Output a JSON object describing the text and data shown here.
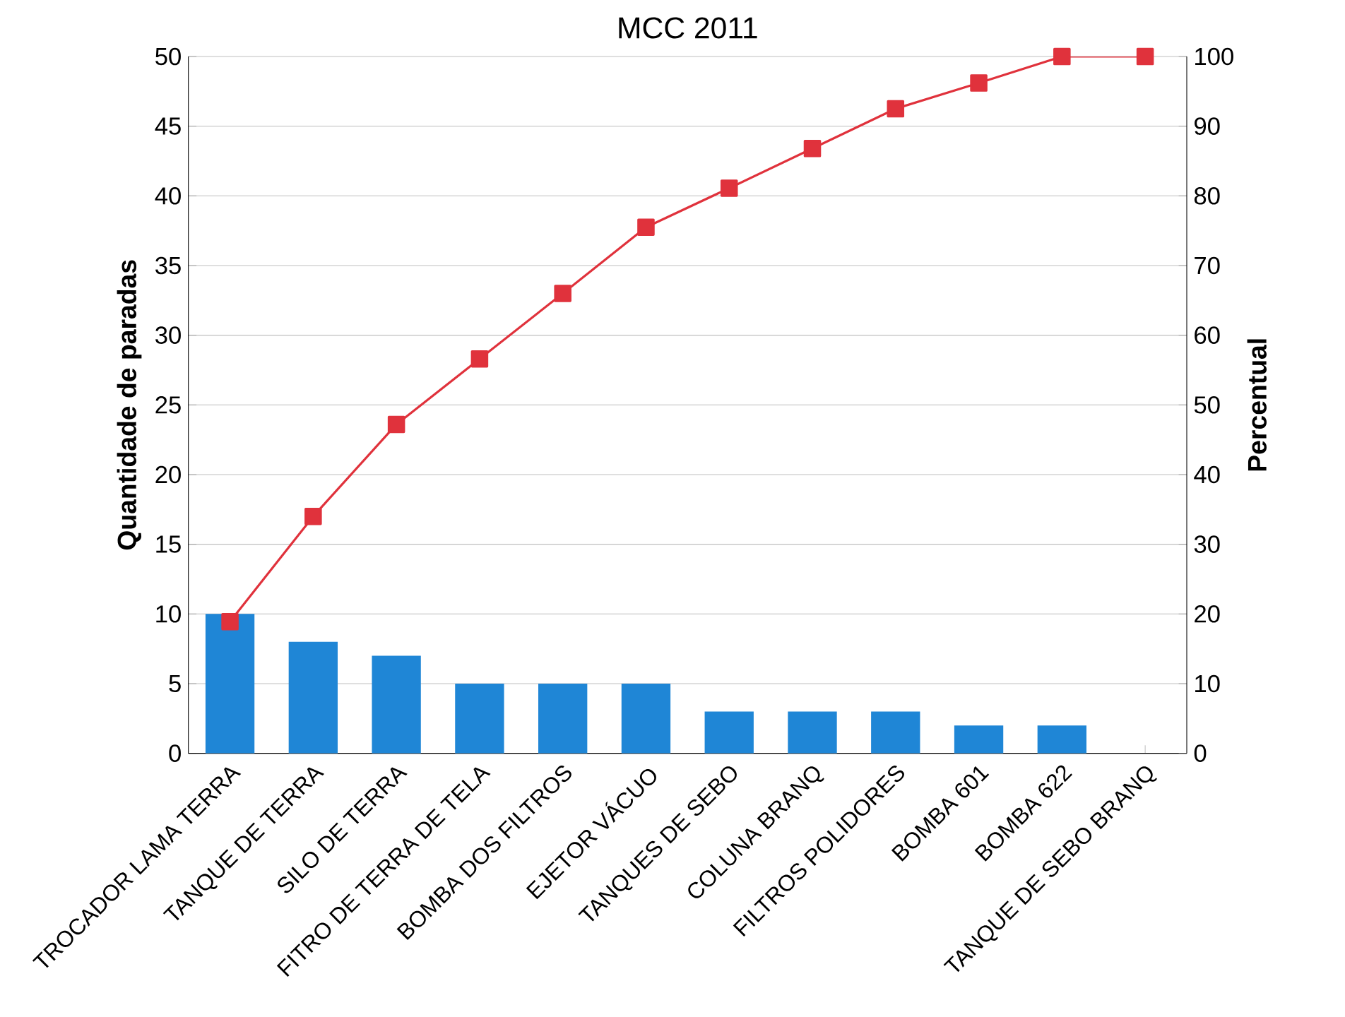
{
  "chart_data": {
    "type": "bar",
    "title": "MCC 2011",
    "ylabel": "Quantidade de paradas",
    "y2label": "Percentual",
    "categories": [
      "TROCADOR LAMA TERRA",
      "TANQUE DE TERRA",
      "SILO DE TERRA",
      "FITRO DE TERRA DE TELA",
      "BOMBA DOS FILTROS",
      "EJETOR VÁCUO",
      "TANQUES DE SEBO",
      "COLUNA BRANQ",
      "FILTROS POLIDORES",
      "BOMBA 601",
      "BOMBA 622",
      "TANQUE DE SEBO BRANQ"
    ],
    "series": [
      {
        "color": "#1f86d6",
        "values": [
          10,
          8,
          7,
          5,
          5,
          5,
          3,
          3,
          3,
          2,
          2,
          0
        ]
      },
      {
        "type": "line",
        "axis": "y2",
        "color": "#e0323c",
        "marker": "square",
        "values": [
          18.9,
          34,
          47.2,
          56.6,
          66,
          75.5,
          81.1,
          86.8,
          92.5,
          96.2,
          100,
          100
        ]
      }
    ],
    "ylim": [
      0,
      50
    ],
    "yticks": [
      0,
      5,
      10,
      15,
      20,
      25,
      30,
      35,
      40,
      45,
      50
    ],
    "y2lim": [
      0,
      100
    ],
    "y2ticks": [
      0,
      10,
      20,
      30,
      40,
      50,
      60,
      70,
      80,
      90,
      100
    ],
    "grid": "y"
  }
}
